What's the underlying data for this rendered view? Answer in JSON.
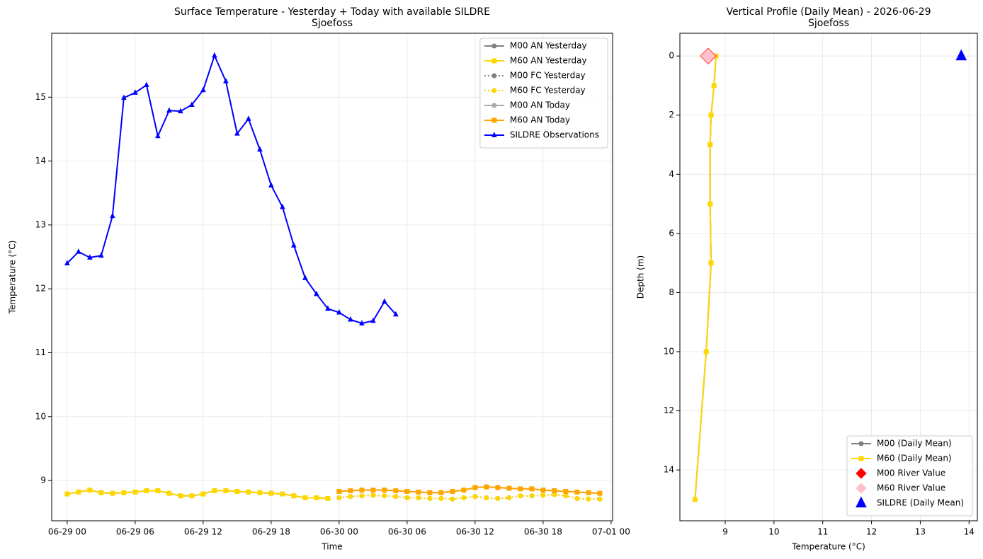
{
  "chart_data": [
    {
      "type": "line",
      "title": "Surface Temperature - Yesterday + Today with available SILDRE",
      "subtitle": "Sjoefoss",
      "x_label": "Time",
      "y_label": "Temperature (°C)",
      "xlim": [
        "06-28 22:38",
        "07-01 00:08"
      ],
      "xticks": [
        "06-29 00",
        "06-29 06",
        "06-29 12",
        "06-29 18",
        "06-30 00",
        "06-30 06",
        "06-30 12",
        "06-30 18",
        "07-01 00"
      ],
      "ylim": [
        8.37,
        16.0
      ],
      "yticks": [
        9,
        10,
        11,
        12,
        13,
        14,
        15
      ],
      "grid": true,
      "legend": "upper right",
      "series": [
        {
          "name": "M00 AN Yesterday",
          "color": "#808080",
          "style": "solid",
          "marker": "circle",
          "x": [
            "06-29 00",
            "06-29 01",
            "06-29 02",
            "06-29 03",
            "06-29 04",
            "06-29 05",
            "06-29 06",
            "06-29 07",
            "06-29 08",
            "06-29 09",
            "06-29 10",
            "06-29 11",
            "06-29 12",
            "06-29 13",
            "06-29 14",
            "06-29 15",
            "06-29 16",
            "06-29 17",
            "06-29 18",
            "06-29 19",
            "06-29 20",
            "06-29 21",
            "06-29 22",
            "06-29 23"
          ],
          "values": [
            8.79,
            8.82,
            8.85,
            8.81,
            8.8,
            8.81,
            8.82,
            8.84,
            8.84,
            8.8,
            8.76,
            8.76,
            8.79,
            8.84,
            8.84,
            8.83,
            8.82,
            8.81,
            8.8,
            8.79,
            8.76,
            8.73,
            8.73,
            8.72
          ]
        },
        {
          "name": "M60 AN Yesterday",
          "color": "#ffd700",
          "style": "solid",
          "marker": "square",
          "x": [
            "06-29 00",
            "06-29 01",
            "06-29 02",
            "06-29 03",
            "06-29 04",
            "06-29 05",
            "06-29 06",
            "06-29 07",
            "06-29 08",
            "06-29 09",
            "06-29 10",
            "06-29 11",
            "06-29 12",
            "06-29 13",
            "06-29 14",
            "06-29 15",
            "06-29 16",
            "06-29 17",
            "06-29 18",
            "06-29 19",
            "06-29 20",
            "06-29 21",
            "06-29 22",
            "06-29 23"
          ],
          "values": [
            8.79,
            8.82,
            8.85,
            8.81,
            8.8,
            8.81,
            8.82,
            8.84,
            8.84,
            8.8,
            8.76,
            8.76,
            8.79,
            8.84,
            8.84,
            8.83,
            8.82,
            8.81,
            8.8,
            8.79,
            8.76,
            8.73,
            8.73,
            8.72
          ]
        },
        {
          "name": "M00 FC Yesterday",
          "color": "#808080",
          "style": "dotted",
          "marker": "circle",
          "x": [
            "06-30 00",
            "06-30 01",
            "06-30 02",
            "06-30 03",
            "06-30 04",
            "06-30 05",
            "06-30 06",
            "06-30 07",
            "06-30 08",
            "06-30 09",
            "06-30 10",
            "06-30 11",
            "06-30 12",
            "06-30 13",
            "06-30 14",
            "06-30 15",
            "06-30 16",
            "06-30 17",
            "06-30 18",
            "06-30 19",
            "06-30 20",
            "06-30 21",
            "06-30 22",
            "06-30 23"
          ],
          "values": [
            8.73,
            8.75,
            8.76,
            8.77,
            8.76,
            8.75,
            8.73,
            8.73,
            8.72,
            8.72,
            8.71,
            8.73,
            8.75,
            8.73,
            8.72,
            8.73,
            8.76,
            8.76,
            8.77,
            8.78,
            8.76,
            8.72,
            8.71,
            8.71
          ]
        },
        {
          "name": "M60 FC Yesterday",
          "color": "#ffd700",
          "style": "dotted",
          "marker": "circle",
          "x": [
            "06-30 00",
            "06-30 01",
            "06-30 02",
            "06-30 03",
            "06-30 04",
            "06-30 05",
            "06-30 06",
            "06-30 07",
            "06-30 08",
            "06-30 09",
            "06-30 10",
            "06-30 11",
            "06-30 12",
            "06-30 13",
            "06-30 14",
            "06-30 15",
            "06-30 16",
            "06-30 17",
            "06-30 18",
            "06-30 19",
            "06-30 20",
            "06-30 21",
            "06-30 22",
            "06-30 23"
          ],
          "values": [
            8.73,
            8.75,
            8.76,
            8.77,
            8.76,
            8.75,
            8.73,
            8.73,
            8.72,
            8.72,
            8.71,
            8.73,
            8.75,
            8.73,
            8.72,
            8.73,
            8.76,
            8.76,
            8.77,
            8.78,
            8.76,
            8.72,
            8.71,
            8.71
          ]
        },
        {
          "name": "M00 AN Today",
          "color": "#a9a9a9",
          "style": "solid",
          "marker": "circle",
          "x": [
            "06-30 00",
            "06-30 01",
            "06-30 02",
            "06-30 03",
            "06-30 04",
            "06-30 05",
            "06-30 06",
            "06-30 07",
            "06-30 08",
            "06-30 09",
            "06-30 10",
            "06-30 11",
            "06-30 12",
            "06-30 13",
            "06-30 14",
            "06-30 15",
            "06-30 16",
            "06-30 17",
            "06-30 18",
            "06-30 19",
            "06-30 20",
            "06-30 21",
            "06-30 22",
            "06-30 23"
          ],
          "values": [
            8.83,
            8.84,
            8.85,
            8.85,
            8.85,
            8.84,
            8.83,
            8.82,
            8.81,
            8.81,
            8.83,
            8.85,
            8.89,
            8.9,
            8.89,
            8.88,
            8.87,
            8.87,
            8.85,
            8.84,
            8.83,
            8.82,
            8.81,
            8.8
          ]
        },
        {
          "name": "M60 AN Today",
          "color": "#ffa500",
          "style": "solid",
          "marker": "square",
          "x": [
            "06-30 00",
            "06-30 01",
            "06-30 02",
            "06-30 03",
            "06-30 04",
            "06-30 05",
            "06-30 06",
            "06-30 07",
            "06-30 08",
            "06-30 09",
            "06-30 10",
            "06-30 11",
            "06-30 12",
            "06-30 13",
            "06-30 14",
            "06-30 15",
            "06-30 16",
            "06-30 17",
            "06-30 18",
            "06-30 19",
            "06-30 20",
            "06-30 21",
            "06-30 22",
            "06-30 23"
          ],
          "values": [
            8.83,
            8.84,
            8.85,
            8.85,
            8.85,
            8.84,
            8.83,
            8.82,
            8.81,
            8.81,
            8.83,
            8.85,
            8.89,
            8.9,
            8.89,
            8.88,
            8.87,
            8.87,
            8.85,
            8.84,
            8.83,
            8.82,
            8.81,
            8.8
          ]
        },
        {
          "name": "SILDRE Observations",
          "color": "#0000ff",
          "style": "solid",
          "marker": "triangle",
          "x": [
            "06-29 00",
            "06-29 01",
            "06-29 02",
            "06-29 03",
            "06-29 04",
            "06-29 05",
            "06-29 06",
            "06-29 07",
            "06-29 08",
            "06-29 09",
            "06-29 10",
            "06-29 11",
            "06-29 12",
            "06-29 13",
            "06-29 14",
            "06-29 15",
            "06-29 16",
            "06-29 17",
            "06-29 18",
            "06-29 19",
            "06-29 20",
            "06-29 21",
            "06-29 22",
            "06-29 23",
            "06-30 00",
            "06-30 01",
            "06-30 02",
            "06-30 03",
            "06-30 04",
            "06-30 05"
          ],
          "values": [
            12.4,
            12.58,
            12.49,
            12.52,
            13.14,
            14.99,
            15.07,
            15.19,
            14.39,
            14.79,
            14.78,
            14.88,
            15.11,
            15.65,
            15.25,
            14.43,
            14.66,
            14.18,
            13.62,
            13.28,
            12.68,
            12.17,
            11.92,
            11.69,
            11.63,
            11.52,
            11.46,
            11.5,
            11.8,
            11.6
          ]
        }
      ]
    },
    {
      "type": "line",
      "title": "Vertical Profile (Daily Mean) - 2026-06-29",
      "subtitle": "Sjoefoss",
      "x_label": "Temperature (°C)",
      "y_label": "Depth (m)",
      "xlim": [
        8.07,
        14.17
      ],
      "xticks": [
        9,
        10,
        11,
        12,
        13,
        14
      ],
      "ylim": [
        15.72,
        -0.77
      ],
      "yticks": [
        0,
        2,
        4,
        6,
        8,
        10,
        12,
        14
      ],
      "grid": true,
      "legend": "lower right",
      "series": [
        {
          "name": "M00 (Daily Mean)",
          "color": "#808080",
          "style": "solid",
          "marker": "circle",
          "x": [
            8.81,
            8.77,
            8.71,
            8.69,
            8.69,
            8.71,
            8.61,
            8.38
          ],
          "values": [
            0,
            1,
            2,
            3,
            5,
            7,
            10,
            15
          ]
        },
        {
          "name": "M60 (Daily Mean)",
          "color": "#ffd700",
          "style": "solid",
          "marker": "square",
          "x": [
            8.81,
            8.77,
            8.71,
            8.69,
            8.69,
            8.71,
            8.61,
            8.38
          ],
          "values": [
            0,
            1,
            2,
            3,
            5,
            7,
            10,
            15
          ]
        },
        {
          "name": "M00 River Value",
          "color": "#ff0000",
          "style": "none",
          "marker": "diamond",
          "x": [
            8.65
          ],
          "values": [
            0
          ]
        },
        {
          "name": "M60 River Value",
          "color": "#ffc0cb",
          "style": "none",
          "marker": "diamond",
          "x": [
            8.65
          ],
          "values": [
            0
          ]
        },
        {
          "name": "SILDRE (Daily Mean)",
          "color": "#0000ff",
          "style": "none",
          "marker": "triangle",
          "x": [
            13.84
          ],
          "values": [
            0
          ]
        }
      ]
    }
  ]
}
